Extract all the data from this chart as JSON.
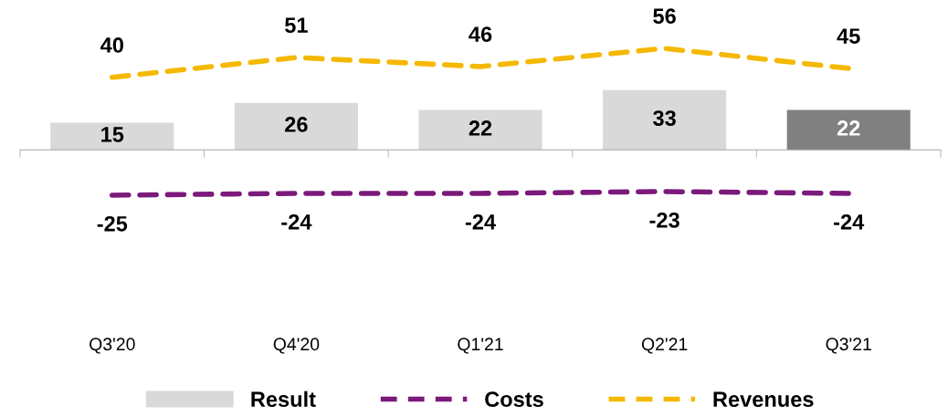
{
  "chart_data": {
    "type": "bar",
    "categories": [
      "Q3'20",
      "Q4'20",
      "Q1'21",
      "Q2'21",
      "Q3'21"
    ],
    "tick_labels": "x",
    "data_labels": true,
    "grid": false,
    "legend": "bottom",
    "marker": "none",
    "series": [
      {
        "name": "Result",
        "color": "#d9d9d9",
        "colors": [
          "#d9d9d9",
          "#d9d9d9",
          "#d9d9d9",
          "#d9d9d9",
          "#808080"
        ],
        "values": [
          15,
          26,
          22,
          33,
          22
        ]
      },
      {
        "name": "Costs",
        "type": "line",
        "line_style": "dashed",
        "color": "#7b1a7b",
        "values": [
          -25,
          -24,
          -24,
          -23,
          -24
        ]
      },
      {
        "name": "Revenues",
        "type": "line",
        "line_style": "dashed",
        "color": "#f5b800",
        "values": [
          40,
          51,
          46,
          56,
          45
        ]
      }
    ]
  }
}
